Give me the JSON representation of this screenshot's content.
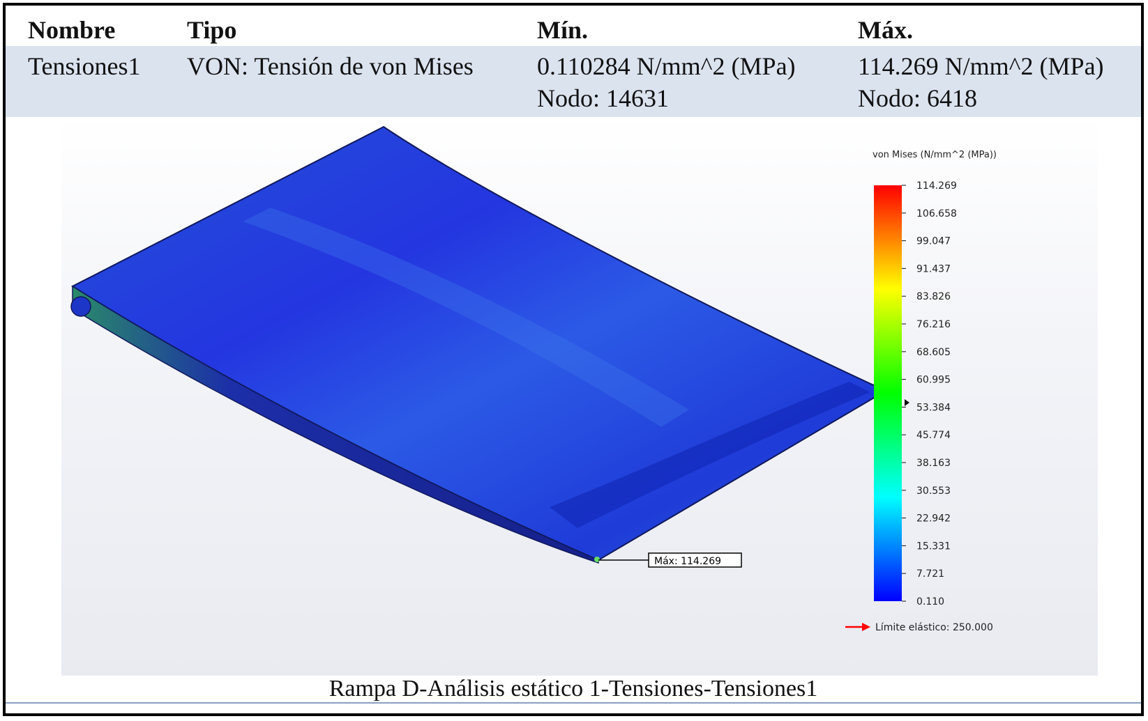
{
  "table": {
    "headers": [
      "Nombre",
      "Tipo",
      "Mín.",
      "Máx."
    ],
    "row": {
      "name": "Tensiones1",
      "type": "VON: Tensión de von Mises",
      "min_value": "0.110284 N/mm^2 (MPa)",
      "min_node": "Nodo: 14631",
      "max_value": "114.269 N/mm^2 (MPa)",
      "max_node": "Nodo: 6418"
    }
  },
  "plot": {
    "legend_title": "von Mises (N/mm^2 (MPa))",
    "legend_ticks": [
      "114.269",
      "106.658",
      "99.047",
      "91.437",
      "83.826",
      "76.216",
      "68.605",
      "60.995",
      "53.384",
      "45.774",
      "38.163",
      "30.553",
      "22.942",
      "15.331",
      "7.721",
      "0.110"
    ],
    "yield_label": "Límite elástico: 250.000",
    "max_label": "Máx: 114.269",
    "colors": {
      "high": "#ff0000",
      "mid_high": "#ffff00",
      "mid": "#00ff00",
      "mid_low": "#00ffff",
      "low": "#0000ff",
      "part_surface": "#2a4fe0",
      "yield_arrow": "#ff0000"
    }
  },
  "caption": "Rampa D-Análisis estático 1-Tensiones-Tensiones1"
}
